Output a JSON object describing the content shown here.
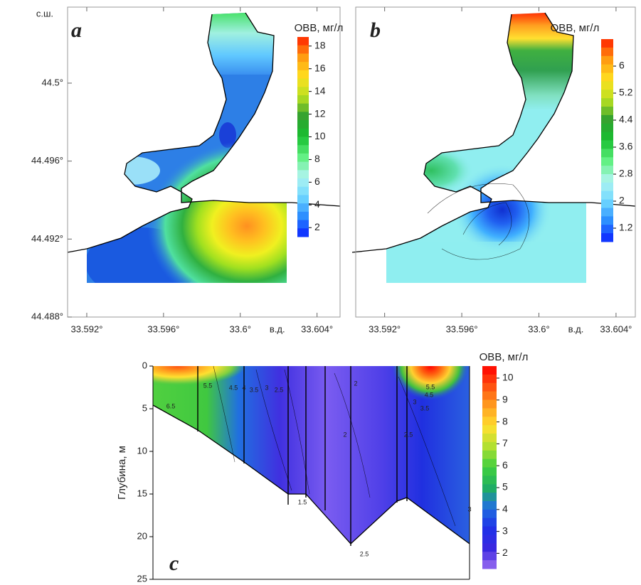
{
  "panels": [
    {
      "label": "a",
      "type": "map",
      "xlim": [
        33.591,
        33.6052
      ],
      "ylim": [
        44.488,
        44.5039
      ],
      "xticks": [
        {
          "value": 33.592,
          "label": "33.592°"
        },
        {
          "value": 33.596,
          "label": "33.596°"
        },
        {
          "value": 33.6,
          "label": "33.6°"
        },
        {
          "value": 33.604,
          "label": "33.604°"
        }
      ],
      "yticks": [
        {
          "value": 44.5,
          "label": "44.5°"
        },
        {
          "value": 44.496,
          "label": "44.496°"
        },
        {
          "value": 44.492,
          "label": "44.492°"
        },
        {
          "value": 44.488,
          "label": "44.488°"
        }
      ],
      "x_unit": "в.д.",
      "y_unit": "с.ш.",
      "colorbar": {
        "title": "ОВВ, мг/л",
        "lim": [
          1.2,
          18.8
        ],
        "ticks": [
          2,
          4,
          6,
          8,
          10,
          12,
          14,
          16,
          18
        ],
        "colors": [
          "#0a20ff",
          "#2a8cff",
          "#70d8ff",
          "#b0f4f0",
          "#60f080",
          "#18c030",
          "#30a030",
          "#b8e020",
          "#ffe020",
          "#ff9a10",
          "#ff2000"
        ]
      }
    },
    {
      "label": "b",
      "type": "map",
      "xlim": [
        33.5905,
        33.605
      ],
      "ylim": [
        44.488,
        44.5039
      ],
      "xticks": [
        {
          "value": 33.592,
          "label": "33.592°"
        },
        {
          "value": 33.596,
          "label": "33.596°"
        },
        {
          "value": 33.6,
          "label": "33.6°"
        },
        {
          "value": 33.604,
          "label": "33.604°"
        }
      ],
      "x_unit": "в.д.",
      "colorbar": {
        "title": "ОВВ, мг/л",
        "lim": [
          0.8,
          6.8
        ],
        "ticks": [
          1.2,
          2,
          2.8,
          3.6,
          4.4,
          5.2,
          6
        ],
        "colors": [
          "#0a20ff",
          "#2a8cff",
          "#70d8ff",
          "#b0f4f0",
          "#60f080",
          "#18c030",
          "#30a030",
          "#b8e020",
          "#ffe020",
          "#ff9a10",
          "#ff2000"
        ]
      }
    },
    {
      "label": "c",
      "type": "section",
      "ylabel": "Глубина, м",
      "ylim": [
        0,
        25
      ],
      "yticks": [
        0,
        5,
        10,
        15,
        20,
        25
      ],
      "contour_labels": [
        6.5,
        5.5,
        4.5,
        4,
        3.5,
        3,
        2.5,
        2,
        2,
        1.5,
        5.5,
        4.5,
        3.5,
        3,
        2.5,
        3,
        2.5
      ],
      "colorbar": {
        "title": "ОВВ, мг/л",
        "lim": [
          1.3,
          10.55
        ],
        "ticks": [
          2,
          3,
          4,
          5,
          6,
          7,
          8,
          9,
          10
        ],
        "colors": [
          "#9a6cf0",
          "#3a28e0",
          "#2030e8",
          "#2070e0",
          "#20b060",
          "#40d040",
          "#b0e030",
          "#ffe030",
          "#ffa020",
          "#ff5010",
          "#ff0000"
        ]
      }
    }
  ]
}
